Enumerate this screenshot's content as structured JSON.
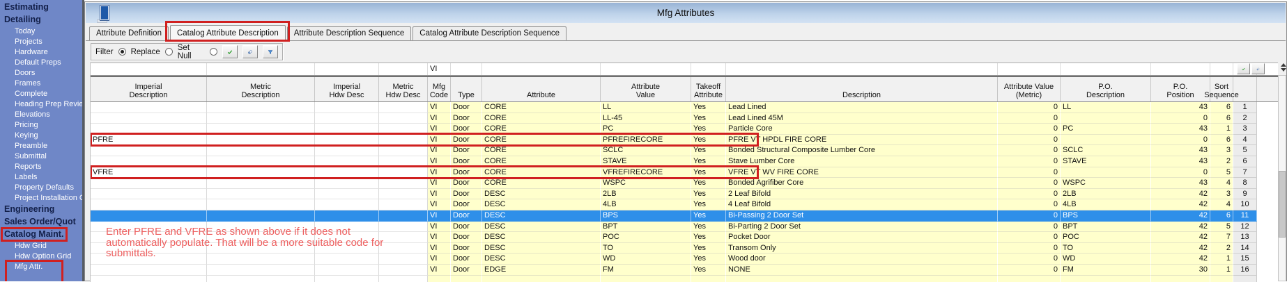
{
  "sidebar": {
    "items": [
      {
        "label": "Estimating",
        "type": "header"
      },
      {
        "label": "Detailing",
        "type": "header"
      },
      {
        "label": "Today",
        "type": "item"
      },
      {
        "label": "Projects",
        "type": "item"
      },
      {
        "label": "Hardware",
        "type": "item"
      },
      {
        "label": "Default Preps",
        "type": "item"
      },
      {
        "label": "Doors",
        "type": "item"
      },
      {
        "label": "Frames",
        "type": "item"
      },
      {
        "label": "Complete",
        "type": "item"
      },
      {
        "label": "Heading Prep Review",
        "type": "item"
      },
      {
        "label": "Elevations",
        "type": "item"
      },
      {
        "label": "Pricing",
        "type": "item"
      },
      {
        "label": "Keying",
        "type": "item"
      },
      {
        "label": "Preamble",
        "type": "item"
      },
      {
        "label": "Submittal",
        "type": "item"
      },
      {
        "label": "Reports",
        "type": "item"
      },
      {
        "label": "Labels",
        "type": "item"
      },
      {
        "label": "Property Defaults",
        "type": "item"
      },
      {
        "label": "Project Installation Op",
        "type": "item"
      },
      {
        "label": "Engineering",
        "type": "header"
      },
      {
        "label": "Sales Order/Quot",
        "type": "header"
      },
      {
        "label": "Catalog Maint.",
        "type": "header",
        "annotated": true
      },
      {
        "label": "Hdw Grid",
        "type": "item"
      },
      {
        "label": "Hdw Option Grid",
        "type": "item"
      },
      {
        "label": "Mfg Attr.",
        "type": "item",
        "annotated": true
      }
    ]
  },
  "window": {
    "title": "Mfg Attributes",
    "icon": "door-icon",
    "tabs": [
      {
        "label": "Attribute Definition",
        "active": false
      },
      {
        "label": "Catalog Attribute Description",
        "active": true,
        "annotated": true
      },
      {
        "label": "Attribute Description Sequence",
        "active": false
      },
      {
        "label": "Catalog Attribute Description Sequence",
        "active": false
      }
    ],
    "toolbar": {
      "options": [
        {
          "label": "Filter",
          "selected": true
        },
        {
          "label": "Replace",
          "selected": false
        },
        {
          "label": "Set Null",
          "selected": false
        }
      ],
      "buttons": [
        "apply-check-icon",
        "eraser-icon",
        "filter-funnel-icon"
      ]
    },
    "grid": {
      "filter_row": {
        "mfg_code": "VI",
        "buttons": [
          "apply-check-icon",
          "eraser-icon"
        ]
      },
      "columns": [
        "Imperial\nDescription",
        "Metric\nDescription",
        "Imperial\nHdw Desc",
        "Metric\nHdw Desc",
        "Mfg\nCode",
        "Type",
        "Attribute",
        "Attribute\nValue",
        "Takeoff\nAttribute",
        "Description",
        "Attribute Value\n(Metric)",
        "P.O.\nDescription",
        "P.O.\nPosition",
        "Sort\nSequence",
        ""
      ],
      "rows": [
        [
          "",
          "",
          "",
          "",
          "VI",
          "Door",
          "CORE",
          "LL",
          "Yes",
          "Lead Lined",
          "0",
          "LL",
          "43",
          "6",
          "1"
        ],
        [
          "",
          "",
          "",
          "",
          "VI",
          "Door",
          "CORE",
          "LL-45",
          "Yes",
          "Lead Lined 45M",
          "0",
          "",
          "0",
          "6",
          "2"
        ],
        [
          "",
          "",
          "",
          "",
          "VI",
          "Door",
          "CORE",
          "PC",
          "Yes",
          "Particle Core",
          "0",
          "PC",
          "43",
          "1",
          "3"
        ],
        [
          "PFRE",
          "",
          "",
          "",
          "VI",
          "Door",
          "CORE",
          "PFREFIRECORE",
          "Yes",
          "PFRE VT HPDL FIRE CORE",
          "0",
          "",
          "0",
          "6",
          "4"
        ],
        [
          "",
          "",
          "",
          "",
          "VI",
          "Door",
          "CORE",
          "SCLC",
          "Yes",
          "Bonded Structural Composite Lumber Core",
          "0",
          "SCLC",
          "43",
          "3",
          "5"
        ],
        [
          "",
          "",
          "",
          "",
          "VI",
          "Door",
          "CORE",
          "STAVE",
          "Yes",
          "Stave Lumber Core",
          "0",
          "STAVE",
          "43",
          "2",
          "6"
        ],
        [
          "VFRE",
          "",
          "",
          "",
          "VI",
          "Door",
          "CORE",
          "VFREFIRECORE",
          "Yes",
          "VFRE VT WV FIRE CORE",
          "0",
          "",
          "0",
          "5",
          "7"
        ],
        [
          "",
          "",
          "",
          "",
          "VI",
          "Door",
          "CORE",
          "WSPC",
          "Yes",
          "Bonded Agrifiber Core",
          "0",
          "WSPC",
          "43",
          "4",
          "8"
        ],
        [
          "",
          "",
          "",
          "",
          "VI",
          "Door",
          "DESC",
          "2LB",
          "Yes",
          "2 Leaf Bifold",
          "0",
          "2LB",
          "42",
          "3",
          "9"
        ],
        [
          "",
          "",
          "",
          "",
          "VI",
          "Door",
          "DESC",
          "4LB",
          "Yes",
          "4 Leaf Bifold",
          "0",
          "4LB",
          "42",
          "4",
          "10"
        ],
        [
          "",
          "",
          "",
          "",
          "VI",
          "Door",
          "DESC",
          "BPS",
          "Yes",
          "Bi-Passing 2 Door Set",
          "0",
          "BPS",
          "42",
          "6",
          "11"
        ],
        [
          "",
          "",
          "",
          "",
          "VI",
          "Door",
          "DESC",
          "BPT",
          "Yes",
          "Bi-Parting 2 Door Set",
          "0",
          "BPT",
          "42",
          "5",
          "12"
        ],
        [
          "",
          "",
          "",
          "",
          "VI",
          "Door",
          "DESC",
          "POC",
          "Yes",
          "Pocket Door",
          "0",
          "POC",
          "42",
          "7",
          "13"
        ],
        [
          "",
          "",
          "",
          "",
          "VI",
          "Door",
          "DESC",
          "TO",
          "Yes",
          "Transom Only",
          "0",
          "TO",
          "42",
          "2",
          "14"
        ],
        [
          "",
          "",
          "",
          "",
          "VI",
          "Door",
          "DESC",
          "WD",
          "Yes",
          "Wood door",
          "0",
          "WD",
          "42",
          "1",
          "15"
        ],
        [
          "",
          "",
          "",
          "",
          "VI",
          "Door",
          "EDGE",
          "FM",
          "Yes",
          "NONE",
          "0",
          "FM",
          "30",
          "1",
          "16"
        ]
      ],
      "selected_row_index": 10
    }
  },
  "annotations": {
    "highlight_color": "#d02020",
    "note_color": "#ed5e5e",
    "boxed_row_indices": [
      3,
      6
    ],
    "note_lines": [
      "Enter PFRE and VFRE as shown above if it does not",
      "automatically populate. That will be a more suitable code for",
      "submittals."
    ]
  }
}
